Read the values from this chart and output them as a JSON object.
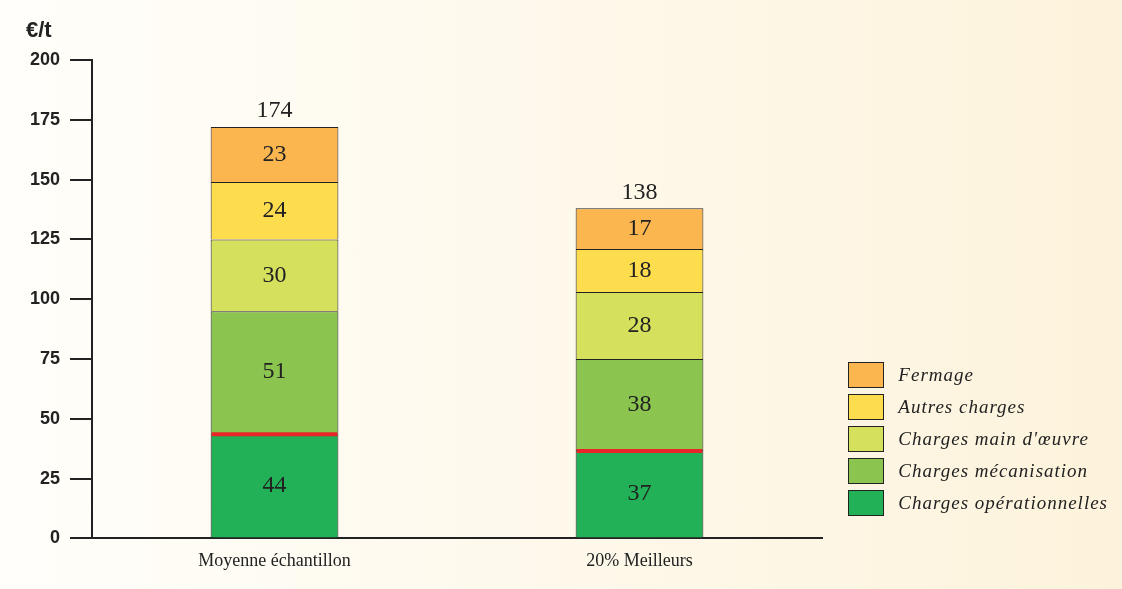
{
  "chart_data": {
    "type": "bar",
    "ylabel": "€/t",
    "categories": [
      "Moyenne échantillon",
      "20% Meilleurs"
    ],
    "stacked": true,
    "data_labels": true,
    "totals": [
      "174",
      "138"
    ],
    "ylim": [
      0,
      200
    ],
    "yticks": [
      0,
      25,
      50,
      75,
      100,
      125,
      150,
      175,
      200
    ],
    "grid": false,
    "legend": "bottom right",
    "series": [
      {
        "name": "Charges opérationnelles",
        "color": "#22b157",
        "values": [
          44,
          37
        ]
      },
      {
        "name": "Charges mécanisation",
        "color": "#8bc54f",
        "values": [
          51,
          38
        ]
      },
      {
        "name": "Charges main d'œuvre",
        "color": "#d5e05c",
        "values": [
          30,
          28
        ]
      },
      {
        "name": "Autres charges",
        "color": "#fddc4e",
        "values": [
          24,
          18
        ]
      },
      {
        "name": "Fermage",
        "color": "#fbb64f",
        "values": [
          23,
          17
        ]
      }
    ]
  }
}
